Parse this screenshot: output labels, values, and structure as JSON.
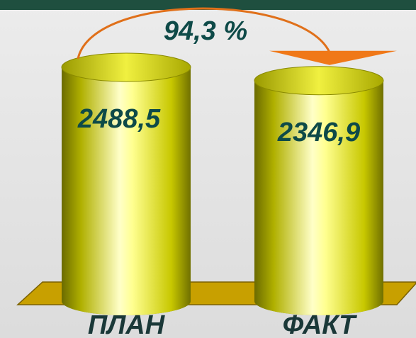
{
  "chart_data": {
    "type": "bar",
    "categories": [
      "ПЛАН",
      "ФАКТ"
    ],
    "values": [
      2488.5,
      2346.9
    ],
    "value_labels": [
      "2488,5",
      "2346,9"
    ],
    "annotation": "94,3 %",
    "color": "#e6e600"
  }
}
